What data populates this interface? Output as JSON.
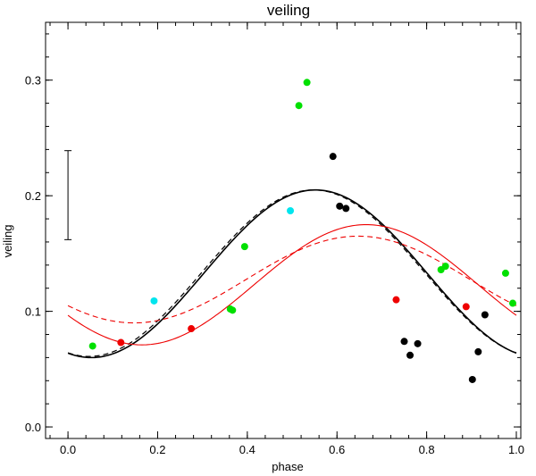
{
  "chart_data": {
    "type": "scatter",
    "title": "veiling",
    "xlabel": "phase",
    "ylabel": "veiling",
    "xlim": [
      -0.05,
      1.01
    ],
    "ylim": [
      -0.01,
      0.35
    ],
    "x_ticks": [
      0.0,
      0.2,
      0.4,
      0.6,
      0.8,
      1.0
    ],
    "x_tick_labels": [
      "0.0",
      "0.2",
      "0.4",
      "0.6",
      "0.8",
      "1.0"
    ],
    "y_ticks": [
      0.0,
      0.1,
      0.2,
      0.3
    ],
    "y_tick_labels": [
      "0.0",
      "0.1",
      "0.2",
      "0.3"
    ],
    "grid": false,
    "error_bar": {
      "x": 0.0,
      "low": 0.162,
      "high": 0.239
    },
    "series": [
      {
        "name": "green",
        "color": "#00e000",
        "points": [
          [
            0.055,
            0.07
          ],
          [
            0.362,
            0.102
          ],
          [
            0.367,
            0.101
          ],
          [
            0.394,
            0.156
          ],
          [
            0.515,
            0.278
          ],
          [
            0.533,
            0.298
          ],
          [
            0.832,
            0.136
          ],
          [
            0.842,
            0.139
          ],
          [
            0.976,
            0.133
          ],
          [
            0.992,
            0.107
          ]
        ]
      },
      {
        "name": "red",
        "color": "#ee0000",
        "points": [
          [
            0.118,
            0.073
          ],
          [
            0.275,
            0.085
          ],
          [
            0.732,
            0.11
          ],
          [
            0.888,
            0.104
          ]
        ]
      },
      {
        "name": "cyan",
        "color": "#00e5ee",
        "points": [
          [
            0.192,
            0.109
          ],
          [
            0.496,
            0.187
          ]
        ]
      },
      {
        "name": "black",
        "color": "#000000",
        "points": [
          [
            0.591,
            0.234
          ],
          [
            0.606,
            0.191
          ],
          [
            0.62,
            0.189
          ],
          [
            0.75,
            0.074
          ],
          [
            0.763,
            0.062
          ],
          [
            0.78,
            0.072
          ],
          [
            0.902,
            0.041
          ],
          [
            0.915,
            0.065
          ],
          [
            0.93,
            0.097
          ]
        ]
      }
    ],
    "curves": [
      {
        "name": "black-solid-model",
        "color": "#000000",
        "dash": "solid",
        "width": 1.6,
        "mean": 0.1325,
        "amplitude": 0.0725,
        "peak_phase": 0.552
      },
      {
        "name": "black-dashed-model",
        "color": "#000000",
        "dash": "dashed",
        "width": 1.2,
        "mean": 0.133,
        "amplitude": 0.072,
        "peak_phase": 0.547
      },
      {
        "name": "red-solid-model",
        "color": "#ee0000",
        "dash": "solid",
        "width": 1.1,
        "mean": 0.123,
        "amplitude": 0.052,
        "peak_phase": 0.665
      },
      {
        "name": "red-dashed-model",
        "color": "#ee0000",
        "dash": "dashed",
        "width": 1.1,
        "mean": 0.1275,
        "amplitude": 0.0375,
        "peak_phase": 0.647
      }
    ]
  }
}
